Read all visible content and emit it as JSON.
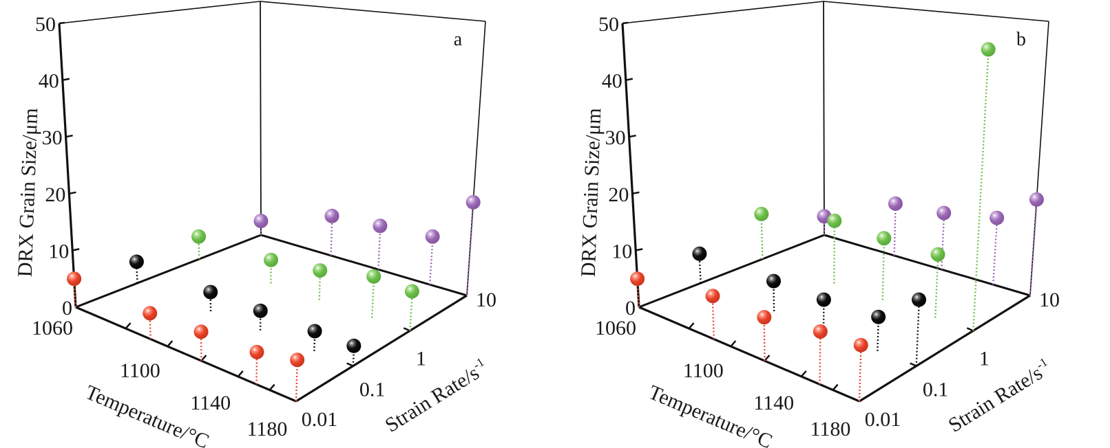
{
  "chart_data": [
    {
      "type": "scatter",
      "subtype": "3d-stem",
      "panel_label": "a",
      "title": "",
      "xlabel": "Temperature/°C",
      "ylabel": "Strain Rate/s",
      "ylabel_superscript": "-1",
      "zlabel": "DRX Grain Size/μm",
      "x_ticks": [
        "1060",
        "1100",
        "1140",
        "1180"
      ],
      "y_ticks": [
        "0.01",
        "0.1",
        "1",
        "10"
      ],
      "z_ticks": [
        "0",
        "10",
        "20",
        "30",
        "40",
        "50"
      ],
      "xlim": [
        1060,
        1180
      ],
      "ylim": [
        0.01,
        10
      ],
      "zlim": [
        0,
        50
      ],
      "x": [
        1060,
        1090,
        1120,
        1150,
        1180
      ],
      "series": [
        {
          "name": "0.01",
          "strain_rate": 0.01,
          "color": "#e8442a",
          "values": [
            5.0,
            4.5,
            5.0,
            5.5,
            7.0
          ]
        },
        {
          "name": "0.1",
          "strain_rate": 0.1,
          "color": "#111111",
          "values": [
            4.0,
            3.5,
            3.5,
            3.5,
            3.5
          ]
        },
        {
          "name": "1",
          "strain_rate": 1,
          "color": "#6cbf4a",
          "values": [
            4.5,
            4.5,
            5.5,
            7.5,
            7.0
          ]
        },
        {
          "name": "10",
          "strain_rate": 10,
          "color": "#9a68b5",
          "values": [
            3.0,
            8.0,
            8.5,
            9.0,
            17.0
          ]
        }
      ]
    },
    {
      "type": "scatter",
      "subtype": "3d-stem",
      "panel_label": "b",
      "title": "",
      "xlabel": "Temperature/°C",
      "ylabel": "Strain Rate/s",
      "ylabel_superscript": "-1",
      "zlabel": "DRX Grain Size/μm",
      "x_ticks": [
        "1060",
        "1100",
        "1140",
        "1180"
      ],
      "y_ticks": [
        "0.01",
        "0.1",
        "1",
        "10"
      ],
      "z_ticks": [
        "0",
        "10",
        "20",
        "30",
        "40",
        "50"
      ],
      "xlim": [
        1060,
        1180
      ],
      "ylim": [
        0.01,
        10
      ],
      "zlim": [
        0,
        50
      ],
      "x": [
        1060,
        1090,
        1120,
        1150,
        1180
      ],
      "series": [
        {
          "name": "0.01",
          "strain_rate": 0.01,
          "color": "#e8442a",
          "values": [
            5.0,
            7.5,
            7.5,
            9.0,
            9.5
          ]
        },
        {
          "name": "0.1",
          "strain_rate": 0.1,
          "color": "#111111",
          "values": [
            5.5,
            5.5,
            5.5,
            6.0,
            11.5
          ]
        },
        {
          "name": "1",
          "strain_rate": 1,
          "color": "#6cbf4a",
          "values": [
            9.0,
            12.0,
            11.5,
            11.5,
            50.0
          ]
        },
        {
          "name": "10",
          "strain_rate": 10,
          "color": "#9a68b5",
          "values": [
            4.0,
            10.5,
            11.0,
            12.5,
            17.5
          ]
        }
      ]
    }
  ]
}
